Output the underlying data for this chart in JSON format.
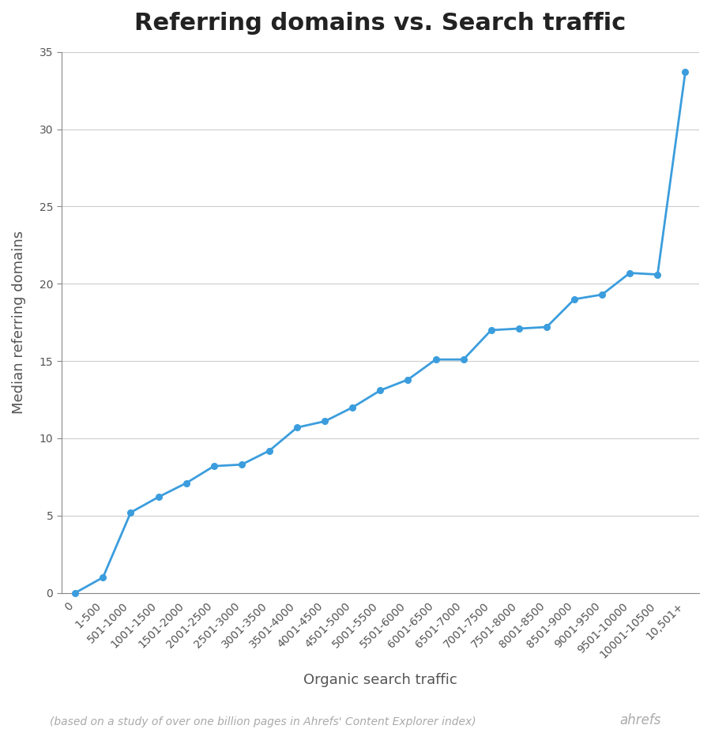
{
  "title": "Referring domains vs. Search traffic",
  "xlabel": "Organic search traffic",
  "ylabel": "Median referring domains",
  "categories": [
    "0",
    "1-500",
    "501-1000",
    "1001-1500",
    "1501-2000",
    "2001-2500",
    "2501-3000",
    "3001-3500",
    "3501-4000",
    "4001-4500",
    "4501-5000",
    "5001-5500",
    "5501-6000",
    "6001-6500",
    "6501-7000",
    "7001-7500",
    "7501-8000",
    "8001-8500",
    "8501-9000",
    "9001-9500",
    "9501-10000",
    "10001-10500",
    "10,501+"
  ],
  "values": [
    0,
    1,
    5.2,
    6.2,
    7.1,
    8.2,
    8.3,
    9.2,
    10.7,
    11.1,
    12.0,
    13.1,
    13.8,
    15.1,
    15.1,
    17.0,
    17.1,
    17.2,
    19.0,
    19.3,
    20.7,
    20.6,
    33.7
  ],
  "line_color": "#3b9ddd",
  "marker_color": "#3b9ddd",
  "background_color": "#ffffff",
  "grid_color": "#cccccc",
  "title_color": "#222222",
  "label_color": "#555555",
  "axis_color": "#888888",
  "footer_text": "(based on a study of over one billion pages in Ahrefs' Content Explorer index)",
  "footer_brand": "ahrefs",
  "ylim": [
    0,
    35
  ],
  "yticks": [
    0,
    5,
    10,
    15,
    20,
    25,
    30,
    35
  ],
  "title_fontsize": 22,
  "axis_label_fontsize": 13,
  "tick_fontsize": 10,
  "footer_fontsize": 10
}
